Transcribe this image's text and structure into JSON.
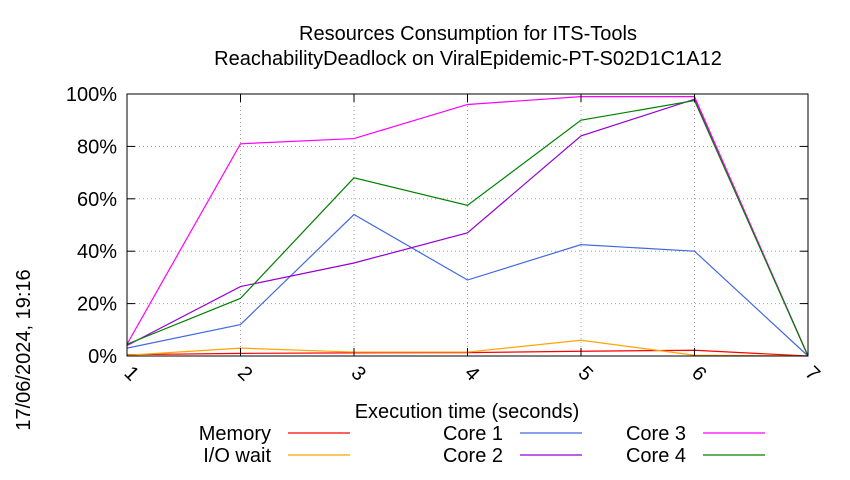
{
  "chart_data": {
    "type": "line",
    "title": "Resources Consumption for ITS-Tools",
    "subtitle": "ReachabilityDeadlock on ViralEpidemic-PT-S02D1C1A12",
    "xlabel": "Execution time (seconds)",
    "ylabel": "",
    "timestamp": "17/06/2024, 19:16",
    "x": [
      1,
      2,
      3,
      4,
      5,
      6,
      7
    ],
    "xlim": [
      1,
      7
    ],
    "ylim": [
      0,
      100
    ],
    "x_tick_labels": [
      "1",
      "2",
      "3",
      "4",
      "5",
      "6",
      "7"
    ],
    "y_tick_labels": [
      "0%",
      "20%",
      "40%",
      "60%",
      "80%",
      "100%"
    ],
    "grid": true,
    "legend_position": "bottom",
    "series": [
      {
        "name": "Memory",
        "color": "#ff0000",
        "values": [
          0.5,
          1.0,
          1.2,
          1.3,
          1.8,
          2.2,
          0
        ]
      },
      {
        "name": "I/O wait",
        "color": "#ffa500",
        "values": [
          0.3,
          3.0,
          1.5,
          1.5,
          6.0,
          0.3,
          0
        ]
      },
      {
        "name": "Core 1",
        "color": "#4169e1",
        "values": [
          3.0,
          12.0,
          54.0,
          29.0,
          42.5,
          40.0,
          0
        ]
      },
      {
        "name": "Core 2",
        "color": "#9400d3",
        "values": [
          4.0,
          26.5,
          35.5,
          47.0,
          84.0,
          98.0,
          0
        ]
      },
      {
        "name": "Core 3",
        "color": "#ff00ff",
        "values": [
          4.5,
          81.0,
          83.0,
          96.0,
          99.0,
          99.0,
          0
        ]
      },
      {
        "name": "Core 4",
        "color": "#008000",
        "values": [
          4.5,
          22.0,
          68.0,
          57.5,
          90.0,
          97.5,
          0
        ]
      }
    ]
  }
}
